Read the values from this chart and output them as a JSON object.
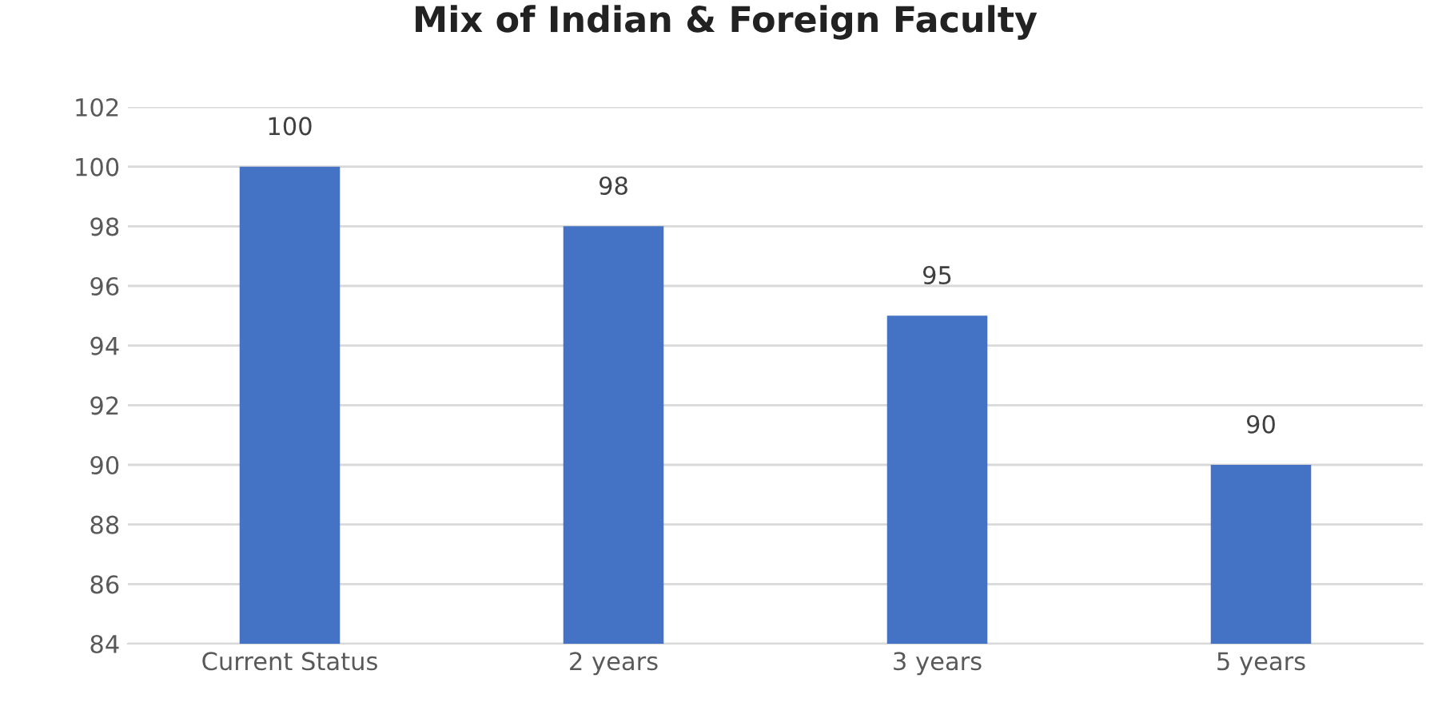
{
  "chart_data": {
    "type": "bar",
    "title": "Mix of Indian & Foreign Faculty",
    "categories": [
      "Current Status",
      "2 years",
      "3 years",
      "5 years"
    ],
    "values": [
      100,
      98,
      95,
      90
    ],
    "color": "#4472c4",
    "ylim": [
      84,
      102
    ],
    "yticks": [
      84,
      86,
      88,
      90,
      92,
      94,
      96,
      98,
      100,
      102
    ],
    "grid": "y",
    "data_labels": true
  }
}
